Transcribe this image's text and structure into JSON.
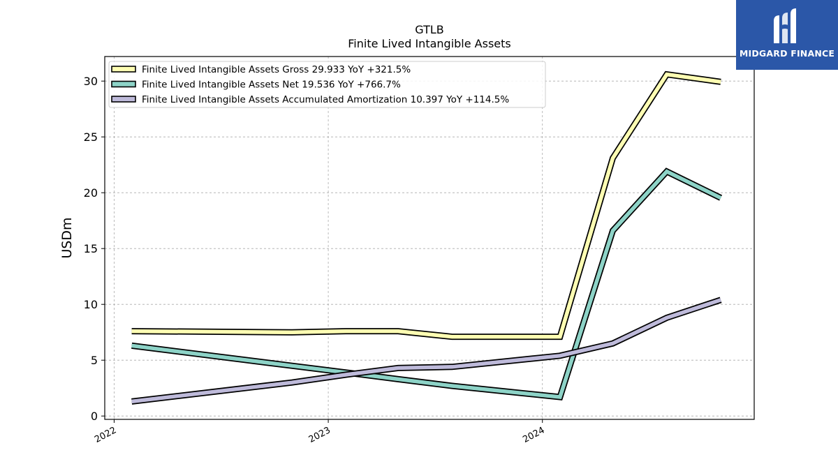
{
  "brand": {
    "name": "MIDGARD FINANCE",
    "bg_color": "#2b57a8"
  },
  "chart_data": {
    "type": "line",
    "title": "GTLB",
    "subtitle": "Finite Lived Intangible Assets",
    "ylabel": "USDm",
    "xlabel": "",
    "ylim": [
      -0.3,
      32.2
    ],
    "yticks": [
      0,
      5,
      10,
      15,
      20,
      25,
      30
    ],
    "xlim": [
      "2021-12-16",
      "2024-12-27"
    ],
    "xticks": [
      {
        "date": "2022-01-01",
        "label": "2022"
      },
      {
        "date": "2023-01-01",
        "label": "2023"
      },
      {
        "date": "2024-01-01",
        "label": "2024"
      }
    ],
    "grid": true,
    "legend_position": "top-left",
    "series": [
      {
        "name": "Finite Lived Intangible Assets Gross",
        "legend_label": "Finite Lived Intangible Assets Gross  29.933 YoY +321.5%",
        "color": "#ffffb3",
        "points": [
          {
            "x": "2022-01-31",
            "y": 7.6
          },
          {
            "x": "2022-10-31",
            "y": 7.5
          },
          {
            "x": "2023-01-31",
            "y": 7.6
          },
          {
            "x": "2023-04-30",
            "y": 7.6
          },
          {
            "x": "2023-07-31",
            "y": 7.1
          },
          {
            "x": "2024-01-31",
            "y": 7.1
          },
          {
            "x": "2024-04-30",
            "y": 23.1
          },
          {
            "x": "2024-07-31",
            "y": 30.6
          },
          {
            "x": "2024-10-31",
            "y": 29.933
          }
        ]
      },
      {
        "name": "Finite Lived Intangible Assets Net",
        "legend_label": "Finite Lived Intangible Assets Net  19.536 YoY +766.7%",
        "color": "#8dd3c7",
        "points": [
          {
            "x": "2022-01-31",
            "y": 6.3
          },
          {
            "x": "2022-10-31",
            "y": 4.5
          },
          {
            "x": "2023-01-31",
            "y": 3.9
          },
          {
            "x": "2023-04-30",
            "y": 3.3
          },
          {
            "x": "2023-07-31",
            "y": 2.7
          },
          {
            "x": "2024-01-31",
            "y": 1.7
          },
          {
            "x": "2024-04-30",
            "y": 16.6
          },
          {
            "x": "2024-07-31",
            "y": 21.9
          },
          {
            "x": "2024-10-31",
            "y": 19.536
          }
        ]
      },
      {
        "name": "Finite Lived Intangible Assets Accumulated Amortization",
        "legend_label": "Finite Lived Intangible Assets Accumulated Amortization  10.397 YoY +114.5%",
        "color": "#bebada",
        "points": [
          {
            "x": "2022-01-31",
            "y": 1.3
          },
          {
            "x": "2022-10-31",
            "y": 3.0
          },
          {
            "x": "2023-01-31",
            "y": 3.7
          },
          {
            "x": "2023-04-30",
            "y": 4.3
          },
          {
            "x": "2023-07-31",
            "y": 4.4
          },
          {
            "x": "2024-01-31",
            "y": 5.4
          },
          {
            "x": "2024-04-30",
            "y": 6.5
          },
          {
            "x": "2024-07-31",
            "y": 8.8
          },
          {
            "x": "2024-10-31",
            "y": 10.397
          }
        ]
      }
    ]
  }
}
